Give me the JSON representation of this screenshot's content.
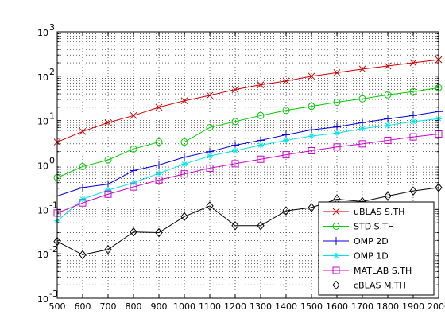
{
  "chart_data": {
    "type": "line",
    "title": "",
    "xlabel": "",
    "ylabel": "",
    "yscale": "log",
    "xlim": [
      500,
      2000
    ],
    "ylim": [
      0.001,
      1000
    ],
    "grid": true,
    "legend_position": "bottom-right",
    "x": [
      500,
      600,
      700,
      800,
      900,
      1000,
      1100,
      1200,
      1300,
      1400,
      1500,
      1600,
      1700,
      1800,
      1900,
      2000
    ],
    "x_tick_labels": [
      "500",
      "600",
      "700",
      "800",
      "900",
      "1000",
      "1100",
      "1200",
      "1300",
      "1400",
      "1500",
      "1600",
      "1700",
      "1800",
      "1900",
      "2000"
    ],
    "y_ticks": [
      0.001,
      0.01,
      0.1,
      1,
      10,
      100,
      1000
    ],
    "y_tick_labels": [
      {
        "base": "10",
        "exp": "-3"
      },
      {
        "base": "10",
        "exp": "-2"
      },
      {
        "base": "10",
        "exp": "-1"
      },
      {
        "base": "10",
        "exp": "0"
      },
      {
        "base": "10",
        "exp": "1"
      },
      {
        "base": "10",
        "exp": "2"
      },
      {
        "base": "10",
        "exp": "3"
      }
    ],
    "series": [
      {
        "name": "uBLAS S.TH",
        "color": "#cc0000",
        "marker": "x",
        "values": [
          3.3,
          5.7,
          9,
          13,
          20,
          28,
          37,
          50,
          64,
          78,
          100,
          120,
          145,
          170,
          200,
          235
        ]
      },
      {
        "name": "STD S.TH",
        "color": "#00cc00",
        "marker": "circle",
        "values": [
          0.52,
          0.92,
          1.3,
          2.3,
          3.3,
          3.3,
          7,
          9.5,
          13,
          17,
          21,
          26,
          31,
          38,
          45,
          55
        ]
      },
      {
        "name": "OMP 2D",
        "color": "#0000dd",
        "marker": "plus",
        "values": [
          0.2,
          0.31,
          0.37,
          0.75,
          1,
          1.5,
          2,
          2.8,
          3.6,
          4.8,
          6.2,
          7.2,
          9,
          11,
          13,
          16
        ]
      },
      {
        "name": "OMP 1D",
        "color": "#00e5e5",
        "marker": "star",
        "values": [
          0.055,
          0.17,
          0.27,
          0.4,
          0.65,
          1.05,
          1.6,
          2.1,
          2.8,
          3.6,
          4.5,
          5.2,
          6.6,
          7.8,
          9.5,
          11
        ]
      },
      {
        "name": "MATLAB S.TH",
        "color": "#cc00cc",
        "marker": "square",
        "values": [
          0.083,
          0.14,
          0.22,
          0.32,
          0.46,
          0.63,
          0.85,
          1.07,
          1.35,
          1.7,
          2.1,
          2.55,
          3,
          3.6,
          4.3,
          5
        ]
      },
      {
        "name": "cBLAS M.TH",
        "color": "#000000",
        "marker": "diamond",
        "values": [
          0.019,
          0.0095,
          0.0125,
          0.031,
          0.03,
          0.069,
          0.12,
          0.043,
          0.043,
          0.093,
          0.11,
          0.17,
          0.15,
          0.2,
          0.26,
          0.31
        ]
      }
    ]
  }
}
